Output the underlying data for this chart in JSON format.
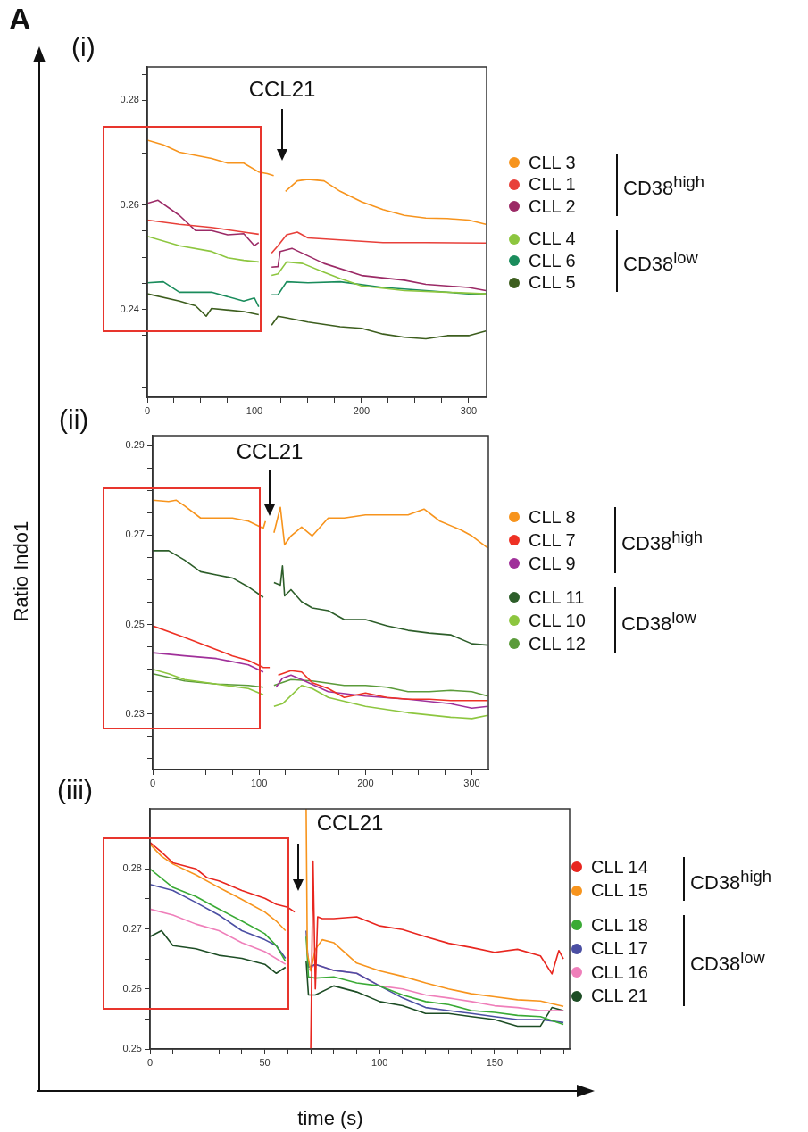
{
  "chart_data": [
    {
      "type": "line",
      "subtitle": "A",
      "title": "(i)",
      "marker": "none",
      "legend": "right",
      "grid": false,
      "xlim": [
        0,
        316.7
      ],
      "xticks": [
        0,
        {
          "value": 25,
          "label": null
        },
        {
          "value": 50,
          "label": null
        },
        {
          "value": 75,
          "label": null
        },
        100,
        {
          "value": 125,
          "label": null
        },
        {
          "value": 150,
          "label": null
        },
        {
          "value": 175,
          "label": null
        },
        200,
        {
          "value": 225,
          "label": null
        },
        {
          "value": 250,
          "label": null
        },
        {
          "value": 275,
          "label": null
        },
        300
      ],
      "ylim": [
        0.2232,
        0.2864
      ],
      "yticks": [
        {
          "value": 0.225,
          "label": null
        },
        {
          "value": 0.23,
          "label": null
        },
        {
          "value": 0.235,
          "label": null
        },
        0.24,
        {
          "value": 0.245,
          "label": null
        },
        {
          "value": 0.25,
          "label": null
        },
        {
          "value": 0.255,
          "label": null
        },
        0.26,
        {
          "value": 0.265,
          "label": null
        },
        {
          "value": 0.27,
          "label": null
        },
        {
          "value": 0.275,
          "label": null
        },
        0.28,
        {
          "value": 0.285,
          "label": null
        }
      ],
      "annotations": [
        "CCL21",
        "CD38$^{high}$",
        "CD38$^{low}$"
      ],
      "series": [
        {
          "name": "CLL 3",
          "color": "#f7941d",
          "x": [
            0,
            15,
            30,
            45,
            60,
            75,
            90,
            104,
            112,
            118,
            123,
            129,
            140,
            150,
            165,
            180,
            200,
            220,
            240,
            260,
            280,
            300,
            316
          ],
          "values": [
            0.2724,
            0.2715,
            0.2701,
            0.2695,
            0.2689,
            0.268,
            0.268,
            0.2663,
            0.266,
            0.2656,
            null,
            0.2626,
            0.2646,
            0.2649,
            0.2646,
            0.2626,
            0.2606,
            0.2591,
            0.258,
            0.2575,
            0.2574,
            0.2571,
            0.2563
          ]
        },
        {
          "name": "CLL 1",
          "color": "#e8403a",
          "x": [
            0,
            30,
            60,
            90,
            104,
            110,
            116,
            122,
            130,
            140,
            150,
            180,
            220,
            260,
            316
          ],
          "values": [
            0.2571,
            0.2563,
            0.2557,
            0.2548,
            0.2544,
            null,
            0.2508,
            0.2522,
            0.2543,
            0.2548,
            0.2537,
            0.2533,
            0.2528,
            0.2528,
            0.2527
          ]
        },
        {
          "name": "CLL 2",
          "color": "#9b2a66",
          "x": [
            0,
            10,
            30,
            45,
            60,
            75,
            90,
            100,
            104,
            110,
            116,
            122,
            124,
            135,
            165,
            200,
            240,
            260,
            300,
            316
          ],
          "values": [
            0.2603,
            0.2609,
            0.258,
            0.2551,
            0.2551,
            0.2543,
            0.2545,
            0.2522,
            0.2528,
            null,
            0.2481,
            0.2482,
            0.2511,
            0.2517,
            0.2488,
            0.2465,
            0.2456,
            0.2448,
            0.2442,
            0.2436
          ]
        },
        {
          "name": "CLL 4",
          "color": "#8dc63f",
          "x": [
            0,
            30,
            60,
            75,
            90,
            104,
            110,
            116,
            122,
            130,
            145,
            165,
            180,
            200,
            240,
            280,
            316
          ],
          "values": [
            0.254,
            0.2522,
            0.2511,
            0.2499,
            0.2494,
            0.2491,
            null,
            0.2465,
            0.2468,
            0.2491,
            0.2488,
            0.2471,
            0.2459,
            0.2445,
            0.2436,
            0.2433,
            0.243
          ]
        },
        {
          "name": "CLL 6",
          "color": "#1a8c5c",
          "x": [
            0,
            15,
            30,
            60,
            90,
            100,
            104,
            110,
            116,
            122,
            130,
            150,
            180,
            220,
            260,
            300,
            316
          ],
          "values": [
            0.2451,
            0.2453,
            0.2433,
            0.2433,
            0.2416,
            0.2422,
            0.2405,
            null,
            0.2428,
            0.2428,
            0.2453,
            0.2451,
            0.2453,
            0.2442,
            0.2436,
            0.243,
            0.243
          ]
        },
        {
          "name": "CLL 5",
          "color": "#3d5e1e",
          "x": [
            0,
            30,
            45,
            55,
            60,
            90,
            104,
            110,
            116,
            122,
            130,
            150,
            180,
            200,
            220,
            240,
            260,
            280,
            300,
            316
          ],
          "values": [
            0.243,
            0.2416,
            0.2407,
            0.2387,
            0.2402,
            0.2396,
            0.239,
            null,
            0.237,
            0.2387,
            0.2384,
            0.2376,
            0.2367,
            0.2364,
            0.2353,
            0.2347,
            0.2344,
            0.235,
            0.235,
            0.2359
          ]
        }
      ]
    },
    {
      "type": "line",
      "title": "(ii)",
      "ylabel": "Ratio Indo1",
      "marker": "none",
      "legend": "right",
      "grid": false,
      "xlim": [
        0,
        315.5
      ],
      "xticks": [
        0,
        {
          "value": 25,
          "label": null
        },
        {
          "value": 50,
          "label": null
        },
        {
          "value": 75,
          "label": null
        },
        100,
        {
          "value": 125,
          "label": null
        },
        {
          "value": 150,
          "label": null
        },
        {
          "value": 175,
          "label": null
        },
        200,
        {
          "value": 225,
          "label": null
        },
        {
          "value": 250,
          "label": null
        },
        {
          "value": 275,
          "label": null
        },
        300
      ],
      "ylim": [
        0.2176,
        0.2922
      ],
      "yticks": [
        {
          "value": 0.22,
          "label": null
        },
        {
          "value": 0.225,
          "label": null
        },
        0.23,
        {
          "value": 0.235,
          "label": null
        },
        {
          "value": 0.24,
          "label": null
        },
        {
          "value": 0.245,
          "label": null
        },
        0.25,
        {
          "value": 0.255,
          "label": null
        },
        {
          "value": 0.26,
          "label": null
        },
        {
          "value": 0.265,
          "label": null
        },
        0.27,
        {
          "value": 0.275,
          "label": null
        },
        {
          "value": 0.28,
          "label": null
        },
        {
          "value": 0.285,
          "label": null
        },
        0.29
      ],
      "annotations": [
        "CCL21",
        "CD38$^{high}$",
        "CD38$^{low}$"
      ],
      "series": [
        {
          "name": "CLL 8",
          "color": "#f7941d",
          "x": [
            0,
            15,
            22,
            30,
            45,
            60,
            75,
            90,
            104,
            106,
            110,
            114,
            120,
            124,
            130,
            140,
            150,
            165,
            180,
            200,
            220,
            240,
            255,
            270,
            290,
            300,
            315
          ],
          "values": [
            0.2778,
            0.2775,
            0.2778,
            0.2765,
            0.2738,
            0.2738,
            0.2738,
            0.2731,
            0.2715,
            0.2731,
            null,
            0.2705,
            0.2762,
            0.2678,
            0.2698,
            0.2718,
            0.2698,
            0.2738,
            0.2738,
            0.2745,
            0.2745,
            0.2745,
            0.2758,
            0.2731,
            0.2711,
            0.2698,
            0.2671
          ]
        },
        {
          "name": "CLL 7",
          "color": "#ee3124",
          "x": [
            0,
            30,
            60,
            75,
            90,
            104,
            110,
            113,
            118,
            130,
            140,
            150,
            165,
            180,
            200,
            220,
            240,
            260,
            280,
            315
          ],
          "values": [
            0.2497,
            0.2471,
            0.2444,
            0.243,
            0.242,
            0.2404,
            0.2404,
            null,
            0.2387,
            0.2397,
            0.2394,
            0.237,
            0.2357,
            0.2337,
            0.2347,
            0.2337,
            0.2333,
            0.2333,
            0.233,
            0.233
          ]
        },
        {
          "name": "CLL 9",
          "color": "#a0309a",
          "x": [
            0,
            30,
            60,
            90,
            104,
            110,
            116,
            122,
            130,
            140,
            165,
            200,
            240,
            280,
            300,
            315
          ],
          "values": [
            0.2437,
            0.243,
            0.2424,
            0.241,
            0.2394,
            null,
            0.236,
            0.238,
            0.2387,
            0.2377,
            0.235,
            0.234,
            0.2333,
            0.2323,
            0.2313,
            0.2317
          ]
        },
        {
          "name": "CLL 11",
          "color": "#2d5e2a",
          "x": [
            0,
            15,
            30,
            45,
            60,
            75,
            90,
            104,
            110,
            114,
            120,
            122,
            124,
            130,
            140,
            150,
            165,
            180,
            200,
            220,
            240,
            260,
            280,
            300,
            315
          ],
          "values": [
            0.2665,
            0.2665,
            0.2644,
            0.2618,
            0.2611,
            0.2604,
            0.2584,
            0.2561,
            null,
            0.2594,
            0.2588,
            0.2631,
            0.2564,
            0.2578,
            0.2551,
            0.2537,
            0.2531,
            0.2511,
            0.2511,
            0.2497,
            0.2487,
            0.2481,
            0.2477,
            0.2457,
            0.2454
          ]
        },
        {
          "name": "CLL 10",
          "color": "#8dc63f",
          "x": [
            0,
            15,
            30,
            60,
            90,
            104,
            110,
            114,
            122,
            140,
            150,
            165,
            200,
            240,
            280,
            300,
            315
          ],
          "values": [
            0.24,
            0.239,
            0.2377,
            0.2367,
            0.2357,
            0.2343,
            null,
            0.2317,
            0.2323,
            0.2364,
            0.2357,
            0.2337,
            0.2317,
            0.2303,
            0.2293,
            0.229,
            0.2297
          ]
        },
        {
          "name": "CLL 12",
          "color": "#5b9b3a",
          "x": [
            0,
            30,
            60,
            90,
            104,
            110,
            114,
            130,
            150,
            180,
            200,
            220,
            240,
            260,
            280,
            300,
            315
          ],
          "values": [
            0.239,
            0.2374,
            0.2367,
            0.2364,
            0.236,
            null,
            0.2364,
            0.2377,
            0.2374,
            0.2364,
            0.2364,
            0.236,
            0.235,
            0.235,
            0.2353,
            0.235,
            0.234
          ]
        }
      ]
    },
    {
      "type": "line",
      "title": "(iii)",
      "xlabel": "time (s)",
      "marker": "none",
      "legend": "right",
      "grid": false,
      "xlim": [
        0,
        182.7
      ],
      "xticks": [
        0,
        {
          "value": 10,
          "label": null
        },
        {
          "value": 20,
          "label": null
        },
        {
          "value": 30,
          "label": null
        },
        {
          "value": 40,
          "label": null
        },
        50,
        {
          "value": 60,
          "label": null
        },
        {
          "value": 70,
          "label": null
        },
        {
          "value": 80,
          "label": null
        },
        {
          "value": 90,
          "label": null
        },
        100,
        {
          "value": 110,
          "label": null
        },
        {
          "value": 120,
          "label": null
        },
        {
          "value": 130,
          "label": null
        },
        {
          "value": 140,
          "label": null
        },
        150,
        {
          "value": 160,
          "label": null
        },
        {
          "value": 170,
          "label": null
        },
        {
          "value": 180,
          "label": null
        }
      ],
      "ylim": [
        0.25,
        0.29
      ],
      "yticks": [
        0.25,
        {
          "value": 0.255,
          "label": null
        },
        0.26,
        {
          "value": 0.265,
          "label": null
        },
        0.27,
        {
          "value": 0.275,
          "label": null
        },
        0.28,
        {
          "value": 0.285,
          "label": null
        }
      ],
      "annotations": [
        "CCL21",
        "CD38$^{high}$",
        "CD38$^{low}$"
      ],
      "series": [
        {
          "name": "CLL 14",
          "color": "#e8261f",
          "x": [
            0,
            5,
            10,
            20,
            25,
            30,
            40,
            50,
            55,
            60,
            63,
            66,
            70,
            71,
            72,
            73,
            75,
            80,
            90,
            100,
            110,
            120,
            130,
            140,
            150,
            160,
            170,
            175,
            178,
            180
          ],
          "values": [
            0.2844,
            0.2828,
            0.281,
            0.28,
            0.2785,
            0.278,
            0.2764,
            0.2751,
            0.2741,
            0.2736,
            0.2728,
            null,
            0.25,
            0.2813,
            0.26,
            0.272,
            0.2717,
            0.2717,
            0.272,
            0.2705,
            0.2699,
            0.2687,
            0.2676,
            0.2669,
            0.2661,
            0.2666,
            0.2655,
            0.2625,
            0.2664,
            0.265
          ]
        },
        {
          "name": "CLL 15",
          "color": "#f7941d",
          "x": [
            0,
            5,
            10,
            20,
            30,
            40,
            50,
            55,
            59,
            64,
            68,
            68.5,
            70,
            72,
            75,
            80,
            90,
            100,
            110,
            120,
            130,
            140,
            150,
            160,
            170,
            180
          ],
          "values": [
            0.2841,
            0.2821,
            0.2808,
            0.279,
            0.2769,
            0.2749,
            0.2728,
            0.2713,
            0.2697,
            null,
            0.29,
            0.266,
            0.263,
            0.2666,
            0.2682,
            0.2677,
            0.2643,
            0.263,
            0.2621,
            0.261,
            0.26,
            0.2592,
            0.2587,
            0.2582,
            0.258,
            0.2571
          ]
        },
        {
          "name": "CLL 18",
          "color": "#3aaa35",
          "x": [
            0,
            10,
            20,
            30,
            40,
            50,
            55,
            59,
            64,
            68,
            69,
            72,
            80,
            90,
            100,
            110,
            120,
            130,
            140,
            150,
            160,
            170,
            180
          ],
          "values": [
            0.28,
            0.2769,
            0.2754,
            0.2733,
            0.2713,
            0.2692,
            0.2672,
            0.2646,
            null,
            0.2687,
            0.262,
            0.2618,
            0.262,
            0.261,
            0.2605,
            0.259,
            0.2579,
            0.2574,
            0.2564,
            0.2561,
            0.2556,
            0.2554,
            0.2541
          ]
        },
        {
          "name": "CLL 17",
          "color": "#4b4fa3",
          "x": [
            0,
            10,
            20,
            30,
            40,
            50,
            55,
            59,
            64,
            68,
            69,
            72,
            80,
            90,
            100,
            110,
            120,
            130,
            140,
            150,
            160,
            170,
            180
          ],
          "values": [
            0.2774,
            0.2764,
            0.2744,
            0.2723,
            0.2697,
            0.2682,
            0.2672,
            0.2651,
            null,
            0.2697,
            0.2636,
            0.2641,
            0.2631,
            0.2626,
            0.2605,
            0.2585,
            0.2569,
            0.2564,
            0.2559,
            0.2554,
            0.2549,
            0.2549,
            0.2544
          ]
        },
        {
          "name": "CLL 16",
          "color": "#ef7fba",
          "x": [
            0,
            10,
            20,
            30,
            40,
            50,
            59,
            64,
            69,
            72,
            80,
            90,
            100,
            110,
            120,
            130,
            140,
            150,
            160,
            170,
            180
          ],
          "values": [
            0.2733,
            0.2723,
            0.2708,
            0.2697,
            0.2677,
            0.2662,
            0.2641,
            null,
            0.2631,
            0.2641,
            0.2631,
            0.2626,
            0.2605,
            0.26,
            0.259,
            0.2585,
            0.2579,
            0.2572,
            0.2569,
            0.2564,
            0.2564
          ]
        },
        {
          "name": "CLL 21",
          "color": "#1d4d25",
          "x": [
            0,
            5,
            10,
            20,
            30,
            40,
            50,
            55,
            59,
            64,
            68,
            69,
            72,
            80,
            90,
            100,
            110,
            120,
            130,
            140,
            150,
            160,
            170,
            175,
            180
          ],
          "values": [
            0.2687,
            0.2697,
            0.2672,
            0.2667,
            0.2656,
            0.2651,
            0.2641,
            0.2626,
            0.2636,
            null,
            0.2646,
            0.259,
            0.259,
            0.2605,
            0.2595,
            0.2579,
            0.2572,
            0.2559,
            0.2559,
            0.2554,
            0.2549,
            0.2538,
            0.2538,
            0.2569,
            0.2564
          ]
        }
      ]
    }
  ]
}
